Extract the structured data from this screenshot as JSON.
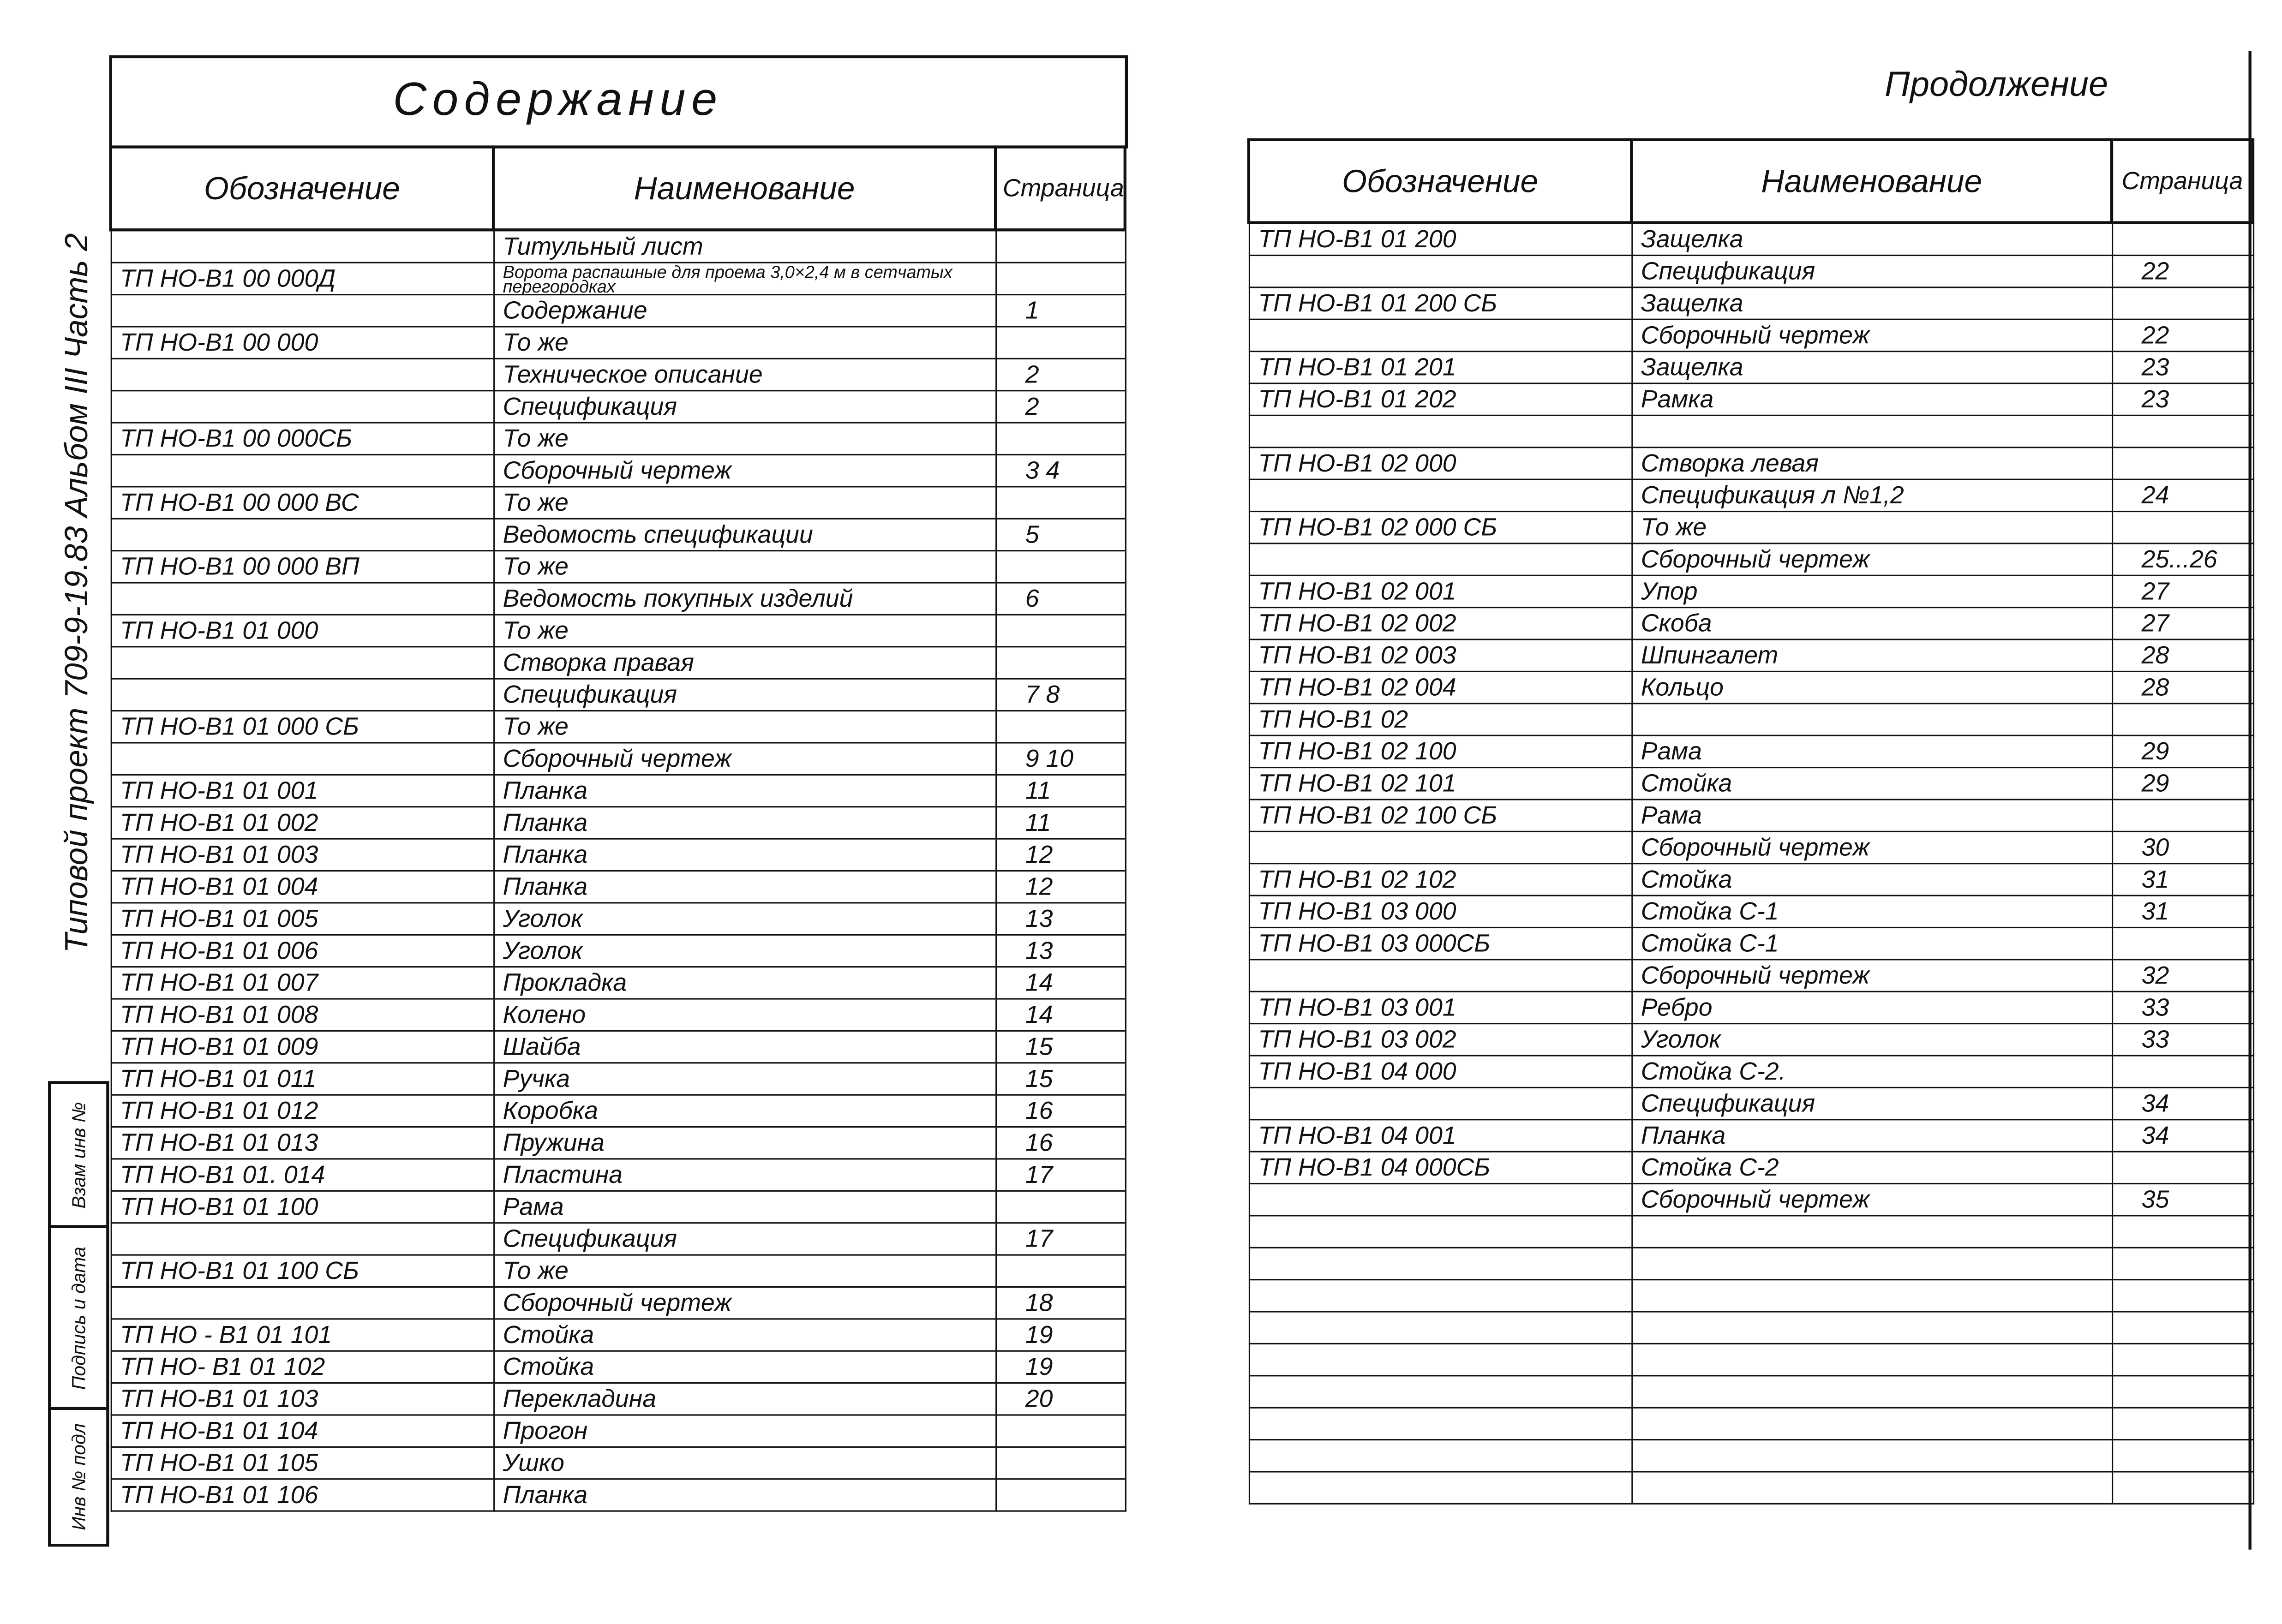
{
  "side_label": "Типовой проект 709-9-19.83 Альбом III Часть 2",
  "stamp": {
    "replace_inv": "Взам инв №",
    "signature_date": "Подпись и дата",
    "inv_orig": "Инв № подл"
  },
  "left": {
    "title": "Содержание",
    "headers": [
      "Обозначение",
      "Наименование",
      "Страница"
    ],
    "rows": [
      [
        "",
        "Титульный лист",
        ""
      ],
      [
        "ТП НО-В1 00 000Д",
        "Ворота распашные для проема 3,0×2,4 м в сетчатых перегородках",
        ""
      ],
      [
        "",
        "Содержание",
        "1"
      ],
      [
        "ТП НО-В1 00 000",
        "То же",
        ""
      ],
      [
        "",
        "Техническое описание",
        "2"
      ],
      [
        "",
        "Спецификация",
        "2"
      ],
      [
        "ТП НО-В1 00 000СБ",
        "То же",
        ""
      ],
      [
        "",
        "Сборочный чертеж",
        "3 4"
      ],
      [
        "ТП НО-В1 00 000 ВС",
        "То же",
        ""
      ],
      [
        "",
        "Ведомость спецификации",
        "5"
      ],
      [
        "ТП НО-В1 00 000 ВП",
        "То же",
        ""
      ],
      [
        "",
        "Ведомость покупных изделий",
        "6"
      ],
      [
        "ТП НО-В1 01 000",
        "То же",
        ""
      ],
      [
        "",
        "Створка правая",
        ""
      ],
      [
        "",
        "Спецификация",
        "7 8"
      ],
      [
        "ТП НО-В1 01 000 СБ",
        "То же",
        ""
      ],
      [
        "",
        "Сборочный чертеж",
        "9 10"
      ],
      [
        "ТП НО-В1 01 001",
        "Планка",
        "11"
      ],
      [
        "ТП НО-В1 01 002",
        "Планка",
        "11"
      ],
      [
        "ТП НО-В1 01 003",
        "Планка",
        "12"
      ],
      [
        "ТП НО-В1 01 004",
        "Планка",
        "12"
      ],
      [
        "ТП НО-В1 01 005",
        "Уголок",
        "13"
      ],
      [
        "ТП НО-В1 01 006",
        "Уголок",
        "13"
      ],
      [
        "ТП НО-В1 01 007",
        "Прокладка",
        "14"
      ],
      [
        "ТП НО-В1 01 008",
        "Колено",
        "14"
      ],
      [
        "ТП НО-В1 01 009",
        "Шайба",
        "15"
      ],
      [
        "ТП НО-В1 01 011",
        "Ручка",
        "15"
      ],
      [
        "ТП НО-В1 01 012",
        "Коробка",
        "16"
      ],
      [
        "ТП НО-В1 01 013",
        "Пружина",
        "16"
      ],
      [
        "ТП НО-В1 01. 014",
        "Пластина",
        "17"
      ],
      [
        "ТП НО-В1 01 100",
        "Рама",
        ""
      ],
      [
        "",
        "Спецификация",
        "17"
      ],
      [
        "ТП НО-В1 01 100 СБ",
        "То же",
        ""
      ],
      [
        "",
        "Сборочный чертеж",
        "18"
      ],
      [
        "ТП НО - В1 01 101",
        "Стойка",
        "19"
      ],
      [
        "ТП НО- В1 01 102",
        "Стойка",
        "19"
      ],
      [
        "ТП НО-В1 01 103",
        "Перекладина",
        "20"
      ],
      [
        "ТП НО-В1 01 104",
        "Прогон",
        ""
      ],
      [
        "ТП НО-В1 01 105",
        "Ушко",
        ""
      ],
      [
        "ТП НО-В1 01 106",
        "Планка",
        ""
      ]
    ]
  },
  "right": {
    "title": "Продолжение",
    "headers": [
      "Обозначение",
      "Наименование",
      "Страница"
    ],
    "rows": [
      [
        "ТП НО-В1 01 200",
        "Защелка",
        ""
      ],
      [
        "",
        "Спецификация",
        "22"
      ],
      [
        "ТП НО-В1 01 200 СБ",
        "Защелка",
        ""
      ],
      [
        "",
        "Сборочный чертеж",
        "22"
      ],
      [
        "ТП НО-В1 01 201",
        "Защелка",
        "23"
      ],
      [
        "ТП НО-В1 01 202",
        "Рамка",
        "23"
      ],
      [
        "ТП НО-В1 02 000",
        "Створка левая",
        ""
      ],
      [
        "",
        "Спецификация л №1,2",
        "24"
      ],
      [
        "ТП НО-В1 02 000 СБ",
        "То же",
        ""
      ],
      [
        "",
        "Сборочный чертеж",
        "25...26"
      ],
      [
        "ТП НО-В1 02 001",
        "Упор",
        "27"
      ],
      [
        "ТП НО-В1 02 002",
        "Скоба",
        "27"
      ],
      [
        "ТП НО-В1 02 003",
        "Шпингалет",
        "28"
      ],
      [
        "ТП НО-В1 02 004",
        "Кольцо",
        "28"
      ],
      [
        "ТП НО-В1 02",
        "",
        ""
      ],
      [
        "ТП НО-В1 02 100",
        "Рама",
        "29"
      ],
      [
        "ТП НО-В1 02 101",
        "Стойка",
        "29"
      ],
      [
        "ТП НО-В1 02 100 СБ",
        "Рама",
        ""
      ],
      [
        "",
        "Сборочный чертеж",
        "30"
      ],
      [
        "ТП НО-В1 02 102",
        "Стойка",
        "31"
      ],
      [
        "ТП НО-В1 03 000",
        "Стойка С-1",
        "31"
      ],
      [
        "ТП НО-В1 03 000СБ",
        "Стойка С-1",
        ""
      ],
      [
        "",
        "Сборочный чертеж",
        "32"
      ],
      [
        "ТП НО-В1 03 001",
        "Ребро",
        "33"
      ],
      [
        "ТП НО-В1 03 002",
        "Уголок",
        "33"
      ],
      [
        "ТП НО-В1 04 000",
        "Стойка С-2.",
        ""
      ],
      [
        "",
        "Спецификация",
        "34"
      ],
      [
        "ТП НО-В1 04 001",
        "Планка",
        "34"
      ],
      [
        "ТП НО-В1 04 000СБ",
        "Стойка С-2",
        ""
      ],
      [
        "",
        "Сборочный чертеж",
        "35"
      ]
    ]
  }
}
